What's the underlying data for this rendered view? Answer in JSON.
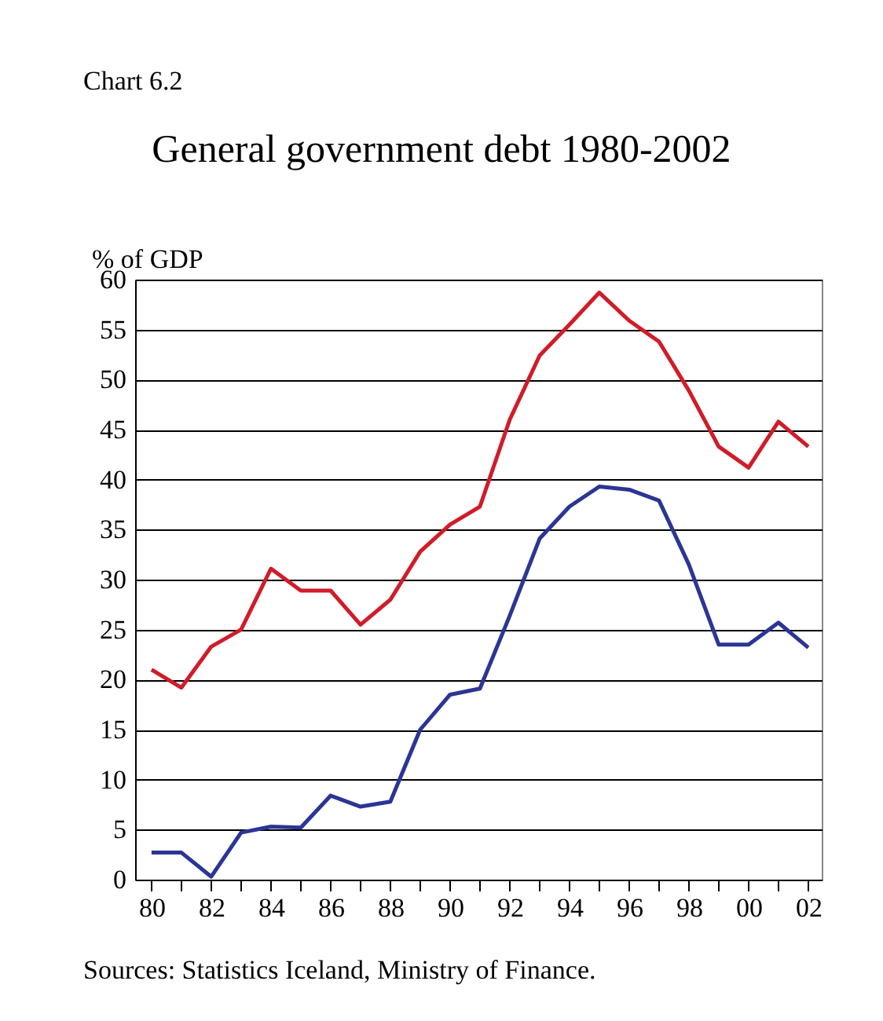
{
  "chart_data": {
    "type": "line",
    "title": "General government debt 1980-2002",
    "ylabel": "% of GDP",
    "annotations": [
      "Chart 6.2",
      "Sources: Statistics Iceland, Ministry of Finance."
    ],
    "x": [
      1980,
      1981,
      1982,
      1983,
      1984,
      1985,
      1986,
      1987,
      1988,
      1989,
      1990,
      1991,
      1992,
      1993,
      1994,
      1995,
      1996,
      1997,
      1998,
      1999,
      2000,
      2001,
      2002
    ],
    "series": [
      {
        "color": "#d01c2a",
        "values": [
          21,
          19.2,
          23.3,
          25,
          31.1,
          28.9,
          28.9,
          25.5,
          28,
          32.8,
          35.5,
          37.3,
          46,
          52.4,
          55.5,
          58.7,
          55.9,
          53.8,
          48.9,
          43.3,
          41.2,
          45.8,
          43.3
        ]
      },
      {
        "color": "#2b3595",
        "values": [
          2.7,
          2.7,
          0.3,
          4.7,
          5.3,
          5.2,
          8.4,
          7.3,
          7.8,
          15,
          18.5,
          19.1,
          26.4,
          34.1,
          37.3,
          39.3,
          39,
          37.9,
          31.5,
          23.5,
          23.5,
          25.7,
          23.2
        ]
      }
    ],
    "xlim": [
      1979.45,
      2002.45
    ],
    "xticks": [
      {
        "value": 1980,
        "label": "80"
      },
      {
        "value": 1981,
        "label": null
      },
      {
        "value": 1982,
        "label": "82"
      },
      {
        "value": 1983,
        "label": null
      },
      {
        "value": 1984,
        "label": "84"
      },
      {
        "value": 1985,
        "label": null
      },
      {
        "value": 1986,
        "label": "86"
      },
      {
        "value": 1987,
        "label": null
      },
      {
        "value": 1988,
        "label": "88"
      },
      {
        "value": 1989,
        "label": null
      },
      {
        "value": 1990,
        "label": "90"
      },
      {
        "value": 1991,
        "label": null
      },
      {
        "value": 1992,
        "label": "92"
      },
      {
        "value": 1993,
        "label": null
      },
      {
        "value": 1994,
        "label": "94"
      },
      {
        "value": 1995,
        "label": null
      },
      {
        "value": 1996,
        "label": "96"
      },
      {
        "value": 1997,
        "label": null
      },
      {
        "value": 1998,
        "label": "98"
      },
      {
        "value": 1999,
        "label": null
      },
      {
        "value": 2000,
        "label": "00"
      },
      {
        "value": 2001,
        "label": null
      },
      {
        "value": 2002,
        "label": "02"
      }
    ],
    "ylim": [
      0,
      60
    ],
    "yticks": [
      0,
      5,
      10,
      15,
      20,
      25,
      30,
      35,
      40,
      45,
      50,
      55,
      60
    ],
    "grid": "y",
    "legend": false,
    "marker": "none",
    "line_style": "solid"
  }
}
